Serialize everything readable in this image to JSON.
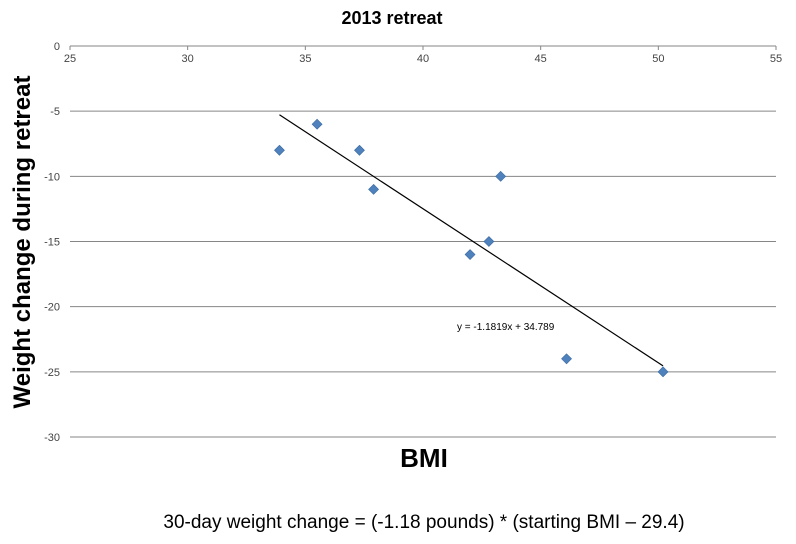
{
  "chart_data": {
    "type": "scatter",
    "title": "2013 retreat",
    "xlabel": "BMI",
    "ylabel": "Weight change during retreat",
    "xlim": [
      25,
      55
    ],
    "ylim": [
      -30,
      0
    ],
    "xticks": [
      "25",
      "30",
      "35",
      "40",
      "45",
      "50",
      "55"
    ],
    "yticks": [
      "0",
      "-5",
      "-10",
      "-15",
      "-20",
      "-25",
      "-30"
    ],
    "grid": "horizontal",
    "marker_color": "#4f81bd",
    "series": [
      {
        "points": [
          {
            "x": 33.9,
            "y": -8
          },
          {
            "x": 35.5,
            "y": -6
          },
          {
            "x": 37.3,
            "y": -8
          },
          {
            "x": 37.9,
            "y": -11
          },
          {
            "x": 42.0,
            "y": -16
          },
          {
            "x": 42.8,
            "y": -15
          },
          {
            "x": 43.3,
            "y": -10
          },
          {
            "x": 46.1,
            "y": -24
          },
          {
            "x": 50.2,
            "y": -25
          }
        ]
      }
    ],
    "trendline": {
      "slope": -1.1819,
      "intercept": 34.789,
      "x_range": [
        33.9,
        50.2
      ],
      "label": "y = -1.1819x + 34.789"
    },
    "footnote": "30-day weight change = (-1.18 pounds) * (starting BMI – 29.4)"
  }
}
